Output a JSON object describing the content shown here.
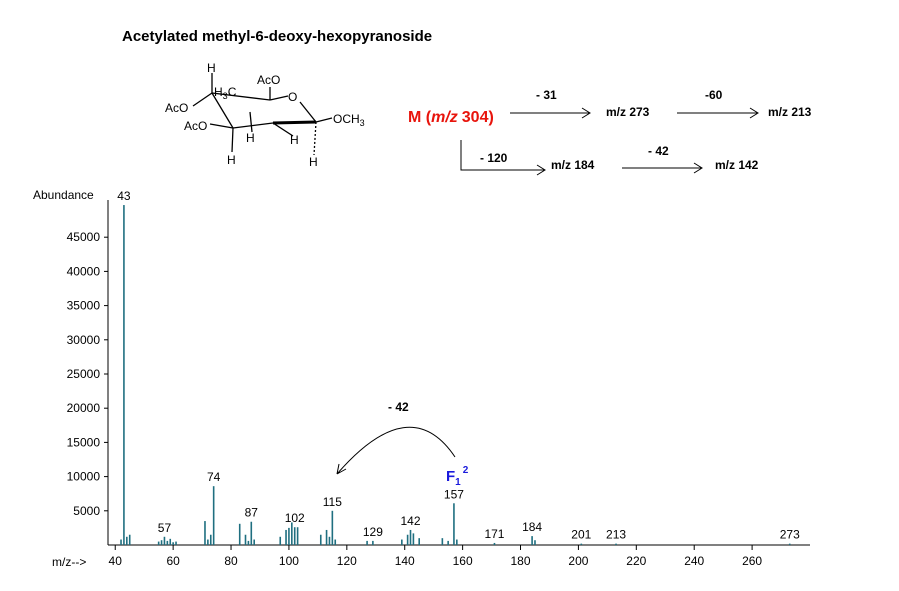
{
  "title": "Acetylated methyl-6-deoxy-hexopyranoside",
  "structure": {
    "labels": [
      "H",
      "H",
      "C",
      "AcO",
      "O",
      "OCH",
      "AcO",
      "AcO",
      "H",
      "H",
      "H",
      "H"
    ],
    "subs": [
      "3",
      "3"
    ]
  },
  "scheme": {
    "parent": {
      "prefix": "M (",
      "mz": "m/z",
      "mass": "304)"
    },
    "steps": [
      {
        "loss": "- 31",
        "product": "m/z 273"
      },
      {
        "loss": "-60",
        "product": "m/z 213"
      },
      {
        "loss": "- 120",
        "product": "m/z 184"
      },
      {
        "loss": "- 42",
        "product": "m/z 142"
      }
    ]
  },
  "chart_data": {
    "type": "bar",
    "color": "#1f6f80",
    "y_label": "Abundance",
    "x_label": "m/z-->",
    "xlim": [
      37.5,
      280
    ],
    "xticks": [
      40,
      60,
      80,
      100,
      120,
      140,
      160,
      180,
      200,
      220,
      240,
      260
    ],
    "ylim": [
      0,
      50000
    ],
    "yticks": [
      5000,
      10000,
      15000,
      20000,
      25000,
      30000,
      35000,
      40000,
      45000
    ],
    "x": [
      42,
      43,
      44,
      45,
      55,
      56,
      57,
      58,
      59,
      60,
      61,
      71,
      72,
      73,
      74,
      83,
      85,
      86,
      87,
      88,
      97,
      99,
      100,
      101,
      102,
      103,
      111,
      113,
      114,
      115,
      116,
      127,
      129,
      139,
      141,
      142,
      143,
      145,
      153,
      155,
      157,
      158,
      171,
      184,
      185,
      201,
      213,
      273
    ],
    "values": [
      800,
      49700,
      1200,
      1500,
      500,
      700,
      1200,
      600,
      900,
      400,
      500,
      3500,
      800,
      1500,
      8600,
      3100,
      1500,
      600,
      3400,
      800,
      1200,
      2200,
      2500,
      3300,
      2600,
      2600,
      1500,
      2200,
      1200,
      5000,
      800,
      600,
      600,
      800,
      1500,
      2200,
      1700,
      1000,
      1000,
      600,
      6100,
      800,
      300,
      1300,
      700,
      200,
      200,
      200
    ],
    "x_labels": [
      null,
      "43",
      null,
      null,
      null,
      null,
      "57",
      null,
      null,
      null,
      null,
      null,
      null,
      null,
      "74",
      null,
      null,
      null,
      "87",
      null,
      null,
      null,
      null,
      null,
      "102",
      null,
      null,
      null,
      null,
      "115",
      null,
      null,
      "129",
      null,
      null,
      "142",
      null,
      null,
      null,
      null,
      "157",
      null,
      "171",
      "184",
      null,
      "201",
      "213",
      "273"
    ],
    "annotation": {
      "loss": "- 42",
      "fragment": "F",
      "sub": "1",
      "sup": "2"
    }
  }
}
